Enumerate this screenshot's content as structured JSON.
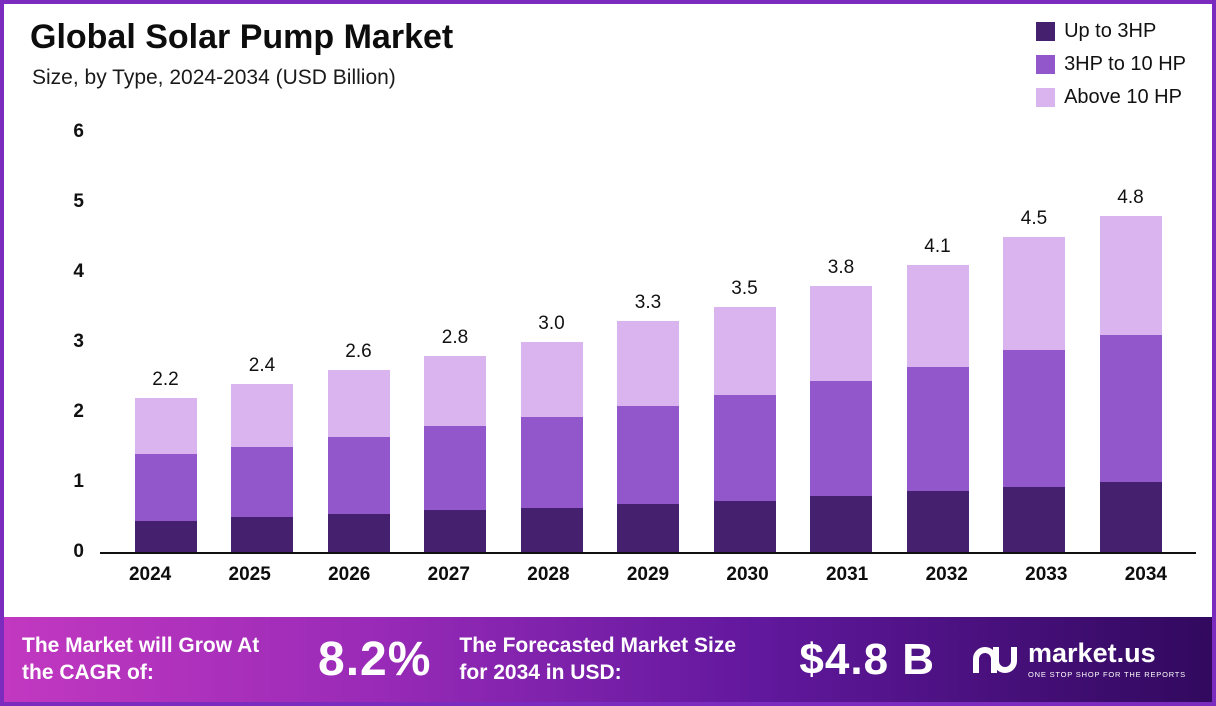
{
  "header": {
    "title": "Global Solar Pump Market",
    "subtitle": "Size, by Type, 2024-2034 (USD Billion)"
  },
  "legend": [
    {
      "label": "Up to 3HP",
      "color": "#44206f"
    },
    {
      "label": "3HP to 10 HP",
      "color": "#9257cb"
    },
    {
      "label": "Above 10 HP",
      "color": "#d9b4ef"
    }
  ],
  "chart_data": {
    "type": "bar",
    "stacked": true,
    "title": "Global Solar Pump Market",
    "subtitle": "Size, by Type, 2024-2034 (USD Billion)",
    "categories": [
      "2024",
      "2025",
      "2026",
      "2027",
      "2028",
      "2029",
      "2030",
      "2031",
      "2032",
      "2033",
      "2034"
    ],
    "series": [
      {
        "name": "Up to 3HP",
        "color": "#44206f",
        "values": [
          0.45,
          0.5,
          0.55,
          0.6,
          0.63,
          0.68,
          0.73,
          0.8,
          0.87,
          0.93,
          1.0
        ]
      },
      {
        "name": "3HP to 10 HP",
        "color": "#9257cb",
        "values": [
          0.95,
          1.0,
          1.1,
          1.2,
          1.3,
          1.4,
          1.52,
          1.65,
          1.78,
          1.95,
          2.1
        ]
      },
      {
        "name": "Above 10 HP",
        "color": "#d9b4ef",
        "values": [
          0.8,
          0.9,
          0.95,
          1.0,
          1.07,
          1.22,
          1.25,
          1.35,
          1.45,
          1.62,
          1.7
        ]
      }
    ],
    "totals_labels": [
      "2.2",
      "2.4",
      "2.6",
      "2.8",
      "3.0",
      "3.3",
      "3.5",
      "3.8",
      "4.1",
      "4.5",
      "4.8"
    ],
    "y_ticks": [
      "6",
      "5",
      "4",
      "3",
      "2",
      "1",
      "0"
    ],
    "ylim": [
      0,
      6
    ],
    "legend_position": "top-right",
    "grid": false
  },
  "footer": {
    "cagr_label": "The Market will Grow At the CAGR of:",
    "cagr_value": "8.2%",
    "forecast_label": "The Forecasted Market Size for 2034 in USD:",
    "forecast_value": "$4.8 B",
    "brand": "market.us",
    "brand_tagline": "ONE STOP SHOP FOR THE REPORTS"
  }
}
